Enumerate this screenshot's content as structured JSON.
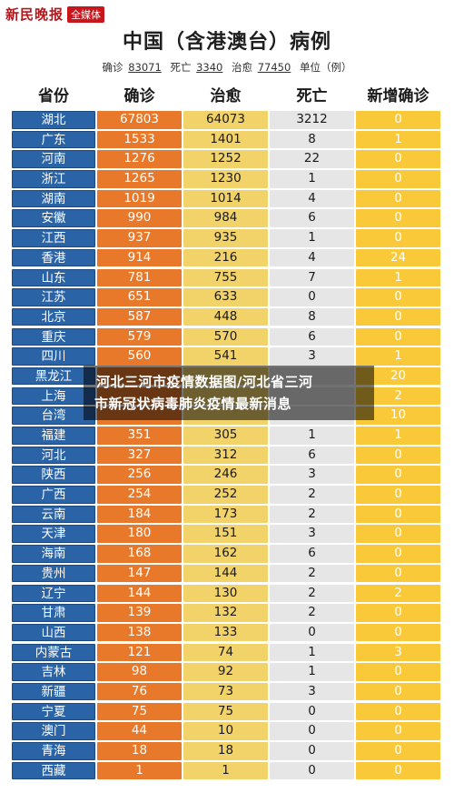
{
  "brand": {
    "name": "新民晚报",
    "badge": "全媒体"
  },
  "title": "中国（含港澳台）病例",
  "summary": {
    "confirmed_label": "确诊",
    "confirmed_value": "83071",
    "death_label": "死亡",
    "death_value": "3340",
    "cured_label": "治愈",
    "cured_value": "77450",
    "unit": "单位（例）"
  },
  "columns": [
    "省份",
    "确诊",
    "治愈",
    "死亡",
    "新增确诊"
  ],
  "rows": [
    {
      "p": "湖北",
      "c": "67803",
      "h": "64073",
      "d": "3212",
      "n": "0"
    },
    {
      "p": "广东",
      "c": "1533",
      "h": "1401",
      "d": "8",
      "n": "1"
    },
    {
      "p": "河南",
      "c": "1276",
      "h": "1252",
      "d": "22",
      "n": "0"
    },
    {
      "p": "浙江",
      "c": "1265",
      "h": "1230",
      "d": "1",
      "n": "0"
    },
    {
      "p": "湖南",
      "c": "1019",
      "h": "1014",
      "d": "4",
      "n": "0"
    },
    {
      "p": "安徽",
      "c": "990",
      "h": "984",
      "d": "6",
      "n": "0"
    },
    {
      "p": "江西",
      "c": "937",
      "h": "935",
      "d": "1",
      "n": "0"
    },
    {
      "p": "香港",
      "c": "914",
      "h": "216",
      "d": "4",
      "n": "24"
    },
    {
      "p": "山东",
      "c": "781",
      "h": "755",
      "d": "7",
      "n": "1"
    },
    {
      "p": "江苏",
      "c": "651",
      "h": "633",
      "d": "0",
      "n": "0"
    },
    {
      "p": "北京",
      "c": "587",
      "h": "448",
      "d": "8",
      "n": "0"
    },
    {
      "p": "重庆",
      "c": "579",
      "h": "570",
      "d": "6",
      "n": "0"
    },
    {
      "p": "四川",
      "c": "560",
      "h": "541",
      "d": "3",
      "n": "1"
    },
    {
      "p": "黑龙江",
      "c": "",
      "h": "",
      "d": "",
      "n": "20"
    },
    {
      "p": "上海",
      "c": "",
      "h": "",
      "d": "",
      "n": "2"
    },
    {
      "p": "台湾",
      "c": "",
      "h": "",
      "d": "",
      "n": "10"
    },
    {
      "p": "福建",
      "c": "351",
      "h": "305",
      "d": "1",
      "n": "1"
    },
    {
      "p": "河北",
      "c": "327",
      "h": "312",
      "d": "6",
      "n": "0"
    },
    {
      "p": "陕西",
      "c": "256",
      "h": "246",
      "d": "3",
      "n": "0"
    },
    {
      "p": "广西",
      "c": "254",
      "h": "252",
      "d": "2",
      "n": "0"
    },
    {
      "p": "云南",
      "c": "184",
      "h": "173",
      "d": "2",
      "n": "0"
    },
    {
      "p": "天津",
      "c": "180",
      "h": "151",
      "d": "3",
      "n": "0"
    },
    {
      "p": "海南",
      "c": "168",
      "h": "162",
      "d": "6",
      "n": "0"
    },
    {
      "p": "贵州",
      "c": "147",
      "h": "144",
      "d": "2",
      "n": "0"
    },
    {
      "p": "辽宁",
      "c": "144",
      "h": "130",
      "d": "2",
      "n": "2"
    },
    {
      "p": "甘肃",
      "c": "139",
      "h": "132",
      "d": "2",
      "n": "0"
    },
    {
      "p": "山西",
      "c": "138",
      "h": "133",
      "d": "0",
      "n": "0"
    },
    {
      "p": "内蒙古",
      "c": "121",
      "h": "74",
      "d": "1",
      "n": "3"
    },
    {
      "p": "吉林",
      "c": "98",
      "h": "92",
      "d": "1",
      "n": "0"
    },
    {
      "p": "新疆",
      "c": "76",
      "h": "73",
      "d": "3",
      "n": "0"
    },
    {
      "p": "宁夏",
      "c": "75",
      "h": "75",
      "d": "0",
      "n": "0"
    },
    {
      "p": "澳门",
      "c": "44",
      "h": "10",
      "d": "0",
      "n": "0"
    },
    {
      "p": "青海",
      "c": "18",
      "h": "18",
      "d": "0",
      "n": "0"
    },
    {
      "p": "西藏",
      "c": "1",
      "h": "1",
      "d": "0",
      "n": "0"
    }
  ],
  "banner": {
    "line1": "河北三河市疫情数据图/河北省三河",
    "line2": "市新冠状病毒肺炎疫情最新消息"
  }
}
